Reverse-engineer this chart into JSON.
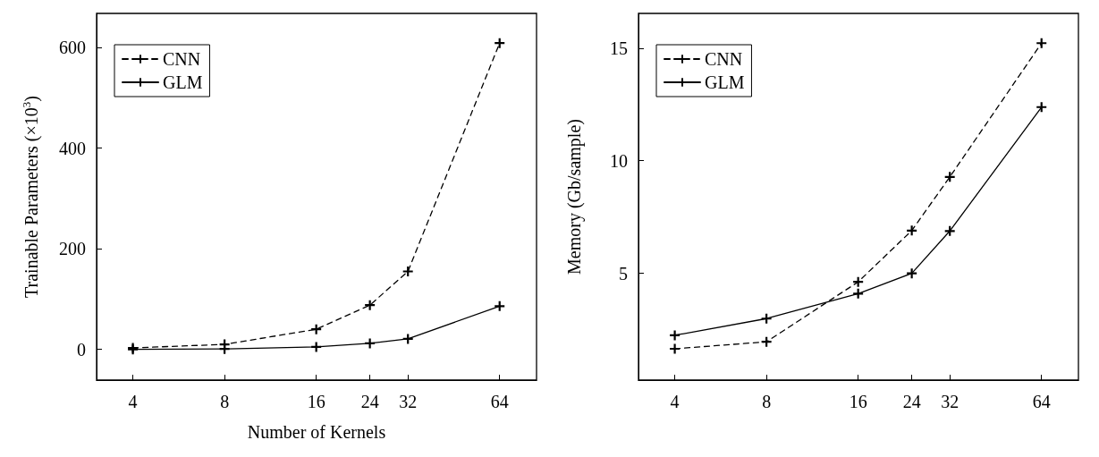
{
  "chart_data": [
    {
      "type": "line",
      "ylabel": "Trainable Parameters (×10$^{3}$)",
      "xlabel": "Number of Kernels",
      "log": "x",
      "x": [
        4,
        8,
        16,
        24,
        32,
        64
      ],
      "xlim": [
        3.04,
        84.6
      ],
      "xticks": [
        4,
        8,
        16,
        24,
        32,
        64
      ],
      "ylim": [
        -61,
        668
      ],
      "yticks": [
        0,
        200,
        400,
        600
      ],
      "legend": "top left",
      "marker": "cross",
      "grid": false,
      "series": [
        {
          "name": "CNN",
          "color": "#000000",
          "line_style": "dashed",
          "values": [
            3,
            10,
            40,
            88,
            155,
            609
          ]
        },
        {
          "name": "GLM",
          "color": "#000000",
          "line_style": "solid",
          "values": [
            0,
            1,
            5,
            12,
            21,
            86
          ]
        }
      ]
    },
    {
      "type": "line",
      "ylabel": "Memory (Gb/sample)",
      "log": "x",
      "x": [
        4,
        8,
        16,
        24,
        32,
        64
      ],
      "xlim": [
        3.04,
        84.6
      ],
      "xticks": [
        4,
        8,
        16,
        24,
        32,
        64
      ],
      "ylim": [
        0.26,
        16.54
      ],
      "yticks": [
        5,
        10,
        15
      ],
      "legend": "top left",
      "marker": "cross",
      "grid": false,
      "series": [
        {
          "name": "CNN",
          "color": "#000000",
          "line_style": "dashed",
          "values": [
            1.65,
            1.96,
            4.62,
            6.9,
            9.28,
            15.22
          ]
        },
        {
          "name": "GLM",
          "color": "#000000",
          "line_style": "solid",
          "values": [
            2.25,
            2.99,
            4.1,
            5.0,
            6.88,
            12.38
          ]
        }
      ]
    }
  ]
}
